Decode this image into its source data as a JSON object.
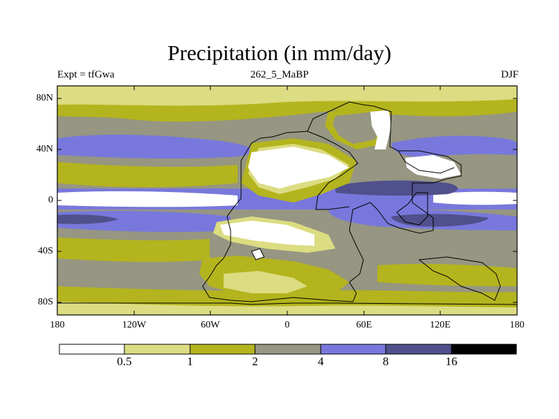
{
  "title": "Precipitation (in mm/day)",
  "subtitle_left": "Expt = tfGwa",
  "subtitle_center": "262_5_MaBP",
  "subtitle_right": "DJF",
  "lat_ticks": [
    {
      "label": "80N",
      "lat": 80
    },
    {
      "label": "40N",
      "lat": 40
    },
    {
      "label": "0",
      "lat": 0
    },
    {
      "label": "40S",
      "lat": -40
    },
    {
      "label": "80S",
      "lat": -80
    }
  ],
  "lon_ticks": [
    {
      "label": "180",
      "lon": -180
    },
    {
      "label": "120W",
      "lon": -120
    },
    {
      "label": "60W",
      "lon": -60
    },
    {
      "label": "0",
      "lon": 0
    },
    {
      "label": "60E",
      "lon": 60
    },
    {
      "label": "120E",
      "lon": 120
    },
    {
      "label": "180",
      "lon": 180
    }
  ],
  "colorbar": {
    "levels": [
      "0.5",
      "1",
      "2",
      "4",
      "8",
      "16"
    ],
    "colors": [
      "#ffffff",
      "#dcdc82",
      "#b4b41e",
      "#969682",
      "#7878dc",
      "#50508c",
      "#000000"
    ]
  }
}
